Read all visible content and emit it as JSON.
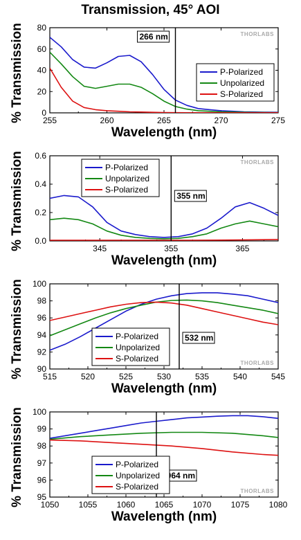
{
  "title": "Transmission, 45° AOI",
  "watermark": "THORLABS",
  "colors": {
    "p": "#1a1acc",
    "u": "#138813",
    "s": "#dd1111",
    "marker": "#000000"
  },
  "chart_data": [
    {
      "type": "line",
      "xlabel": "Wavelength (nm)",
      "ylabel": "% Transmission",
      "xlim": [
        255,
        275
      ],
      "ylim": [
        0,
        80
      ],
      "xticks": [
        255,
        260,
        265,
        270,
        275
      ],
      "yticks": [
        0,
        20,
        40,
        60,
        80
      ],
      "marker": {
        "x": 266,
        "label": "266 nm"
      },
      "legend_position": "right",
      "series": [
        {
          "name": "P-Polarized",
          "color_key": "p",
          "x": [
            255,
            256,
            257,
            258,
            259,
            260,
            261,
            262,
            263,
            264,
            265,
            266,
            267,
            268,
            269,
            270,
            271,
            272,
            273,
            274,
            275
          ],
          "y": [
            71,
            62,
            50,
            43,
            42,
            47,
            53,
            54,
            48,
            36,
            22,
            12,
            7,
            4,
            3,
            2,
            1.5,
            1,
            0.8,
            0.6,
            0.5
          ]
        },
        {
          "name": "Unpolarized",
          "color_key": "u",
          "x": [
            255,
            256,
            257,
            258,
            259,
            260,
            261,
            262,
            263,
            264,
            265,
            266,
            267,
            268,
            269,
            270,
            271,
            272,
            273,
            274,
            275
          ],
          "y": [
            57,
            46,
            34,
            25,
            23,
            25,
            27,
            27,
            24,
            18,
            11,
            6,
            3.5,
            2,
            1.5,
            1,
            0.8,
            0.5,
            0.4,
            0.3,
            0.2
          ]
        },
        {
          "name": "S-Polarized",
          "color_key": "s",
          "x": [
            255,
            256,
            257,
            258,
            259,
            260,
            261,
            262,
            263,
            264,
            265,
            266,
            267,
            268,
            269,
            270,
            271,
            272,
            273,
            274,
            275
          ],
          "y": [
            42,
            24,
            11,
            5,
            3,
            2,
            1.5,
            1,
            0.8,
            0.5,
            0.3,
            0.2,
            0.1,
            0.1,
            0.1,
            0.1,
            0.1,
            0.1,
            0.1,
            0.1,
            0.1
          ]
        }
      ]
    },
    {
      "type": "line",
      "xlabel": "Wavelength (nm)",
      "ylabel": "% Transmission",
      "xlim": [
        338,
        370
      ],
      "ylim": [
        0,
        0.6
      ],
      "xticks": [
        345,
        355,
        365
      ],
      "yticks": [
        0.0,
        0.2,
        0.4,
        0.6
      ],
      "marker": {
        "x": 355,
        "label": "355 nm"
      },
      "legend_position": "top-left",
      "series": [
        {
          "name": "P-Polarized",
          "color_key": "p",
          "x": [
            338,
            340,
            342,
            344,
            346,
            348,
            350,
            352,
            354,
            356,
            358,
            360,
            362,
            364,
            366,
            368,
            370
          ],
          "y": [
            0.3,
            0.32,
            0.31,
            0.24,
            0.13,
            0.07,
            0.045,
            0.03,
            0.025,
            0.03,
            0.05,
            0.09,
            0.16,
            0.24,
            0.27,
            0.23,
            0.18
          ]
        },
        {
          "name": "Unpolarized",
          "color_key": "u",
          "x": [
            338,
            340,
            342,
            344,
            346,
            348,
            350,
            352,
            354,
            356,
            358,
            360,
            362,
            364,
            366,
            368,
            370
          ],
          "y": [
            0.15,
            0.16,
            0.15,
            0.12,
            0.07,
            0.04,
            0.025,
            0.018,
            0.015,
            0.018,
            0.03,
            0.05,
            0.09,
            0.12,
            0.14,
            0.12,
            0.1
          ]
        },
        {
          "name": "S-Polarized",
          "color_key": "s",
          "x": [
            338,
            342,
            346,
            350,
            354,
            358,
            362,
            366,
            370
          ],
          "y": [
            0.005,
            0.005,
            0.005,
            0.005,
            0.005,
            0.005,
            0.006,
            0.008,
            0.01
          ]
        }
      ]
    },
    {
      "type": "line",
      "xlabel": "Wavelength (nm)",
      "ylabel": "% Transmission",
      "xlim": [
        515,
        545
      ],
      "ylim": [
        90,
        100
      ],
      "xticks": [
        515,
        520,
        525,
        530,
        535,
        540,
        545
      ],
      "yticks": [
        90,
        92,
        94,
        96,
        98,
        100
      ],
      "marker": {
        "x": 532,
        "label": "532 nm"
      },
      "legend_position": "bottom-left",
      "series": [
        {
          "name": "P-Polarized",
          "color_key": "p",
          "x": [
            515,
            517,
            519,
            521,
            523,
            525,
            527,
            529,
            531,
            533,
            535,
            537,
            539,
            541,
            543,
            545
          ],
          "y": [
            92.2,
            92.9,
            93.8,
            94.8,
            95.8,
            96.8,
            97.6,
            98.2,
            98.6,
            98.85,
            98.95,
            98.95,
            98.8,
            98.6,
            98.2,
            97.8
          ]
        },
        {
          "name": "Unpolarized",
          "color_key": "u",
          "x": [
            515,
            517,
            519,
            521,
            523,
            525,
            527,
            529,
            531,
            533,
            535,
            537,
            539,
            541,
            543,
            545
          ],
          "y": [
            93.9,
            94.6,
            95.3,
            96.0,
            96.6,
            97.1,
            97.5,
            97.85,
            98.05,
            98.1,
            98.0,
            97.8,
            97.5,
            97.2,
            96.9,
            96.5
          ]
        },
        {
          "name": "S-Polarized",
          "color_key": "s",
          "x": [
            515,
            517,
            519,
            521,
            523,
            525,
            527,
            529,
            531,
            533,
            535,
            537,
            539,
            541,
            543,
            545
          ],
          "y": [
            95.7,
            96.1,
            96.5,
            96.9,
            97.3,
            97.6,
            97.8,
            97.85,
            97.75,
            97.5,
            97.1,
            96.7,
            96.3,
            95.9,
            95.5,
            95.2
          ]
        }
      ]
    },
    {
      "type": "line",
      "xlabel": "Wavelength (nm)",
      "ylabel": "% Transmission",
      "xlim": [
        1050,
        1080
      ],
      "ylim": [
        95,
        100
      ],
      "xticks": [
        1050,
        1055,
        1060,
        1065,
        1070,
        1075,
        1080
      ],
      "yticks": [
        95,
        96,
        97,
        98,
        99,
        100
      ],
      "marker": {
        "x": 1064,
        "label": "1064 nm"
      },
      "legend_position": "bottom-left",
      "series": [
        {
          "name": "P-Polarized",
          "color_key": "p",
          "x": [
            1050,
            1052,
            1054,
            1056,
            1058,
            1060,
            1062,
            1064,
            1066,
            1068,
            1070,
            1072,
            1074,
            1076,
            1078,
            1080
          ],
          "y": [
            98.45,
            98.6,
            98.75,
            98.9,
            99.05,
            99.2,
            99.35,
            99.45,
            99.55,
            99.65,
            99.7,
            99.75,
            99.78,
            99.78,
            99.72,
            99.62
          ]
        },
        {
          "name": "Unpolarized",
          "color_key": "u",
          "x": [
            1050,
            1054,
            1058,
            1062,
            1066,
            1070,
            1074,
            1078,
            1080
          ],
          "y": [
            98.4,
            98.55,
            98.65,
            98.75,
            98.8,
            98.8,
            98.75,
            98.6,
            98.5
          ]
        },
        {
          "name": "S-Polarized",
          "color_key": "s",
          "x": [
            1050,
            1054,
            1058,
            1062,
            1066,
            1070,
            1074,
            1078,
            1080
          ],
          "y": [
            98.35,
            98.3,
            98.2,
            98.1,
            98.0,
            97.85,
            97.65,
            97.5,
            97.45
          ]
        }
      ]
    }
  ]
}
